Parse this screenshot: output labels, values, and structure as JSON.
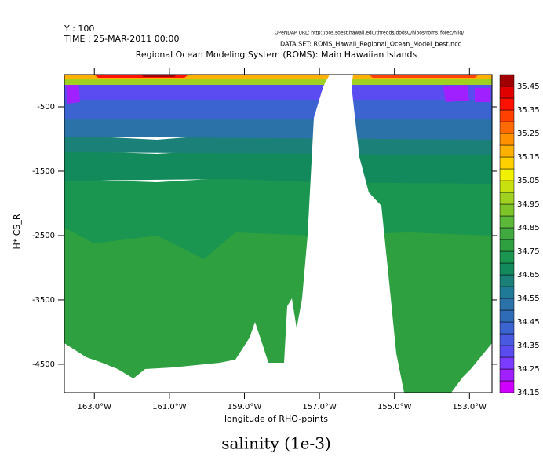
{
  "chart_data": {
    "type": "contour",
    "header": [
      "Y : 100",
      "TIME : 25-MAR-2011 00:00"
    ],
    "source_url": "OPeNDAP URL: http://oos.soest.hawaii.edu/thredds/dodsC/hioos/roms_forec/hiig/",
    "dataset": "DATA SET: ROMS_Hawaii_Regional_Ocean_Model_best.ncd",
    "title": "Regional Ocean Modeling System (ROMS): Main Hawaiian Islands",
    "x_label": "longitude of RHO-points",
    "y_label": "H* CS_R",
    "colorbar_label": "salinity (1e-3)",
    "xlim": [
      -163.8,
      -152.4
    ],
    "xticks": [
      {
        "value": -163,
        "label": "163.0°W"
      },
      {
        "value": -161,
        "label": "161.0°W"
      },
      {
        "value": -159,
        "label": "159.0°W"
      },
      {
        "value": -157,
        "label": "157.0°W"
      },
      {
        "value": -155,
        "label": "155.0°W"
      },
      {
        "value": -153,
        "label": "153.0°W"
      }
    ],
    "ylim": [
      -4940,
      0
    ],
    "yticks": [
      -500,
      -1500,
      -2500,
      -3500,
      -4500
    ],
    "colorbar_lim": [
      34.15,
      35.5
    ],
    "colorbar_ticks": [
      35.45,
      35.35,
      35.25,
      35.15,
      35.05,
      34.95,
      34.85,
      34.75,
      34.65,
      34.55,
      34.45,
      34.35,
      34.25,
      34.15
    ],
    "colorbar_colors": [
      "#d000ff",
      "#a020ff",
      "#7b3cff",
      "#5a4cf0",
      "#4a5ae0",
      "#3c64d0",
      "#2f6cb8",
      "#2a72a8",
      "#1f7a98",
      "#1a8078",
      "#138a5c",
      "#1a9650",
      "#2ea040",
      "#40aa40",
      "#5cb838",
      "#7cc428",
      "#a0d020",
      "#c8e010",
      "#f0f000",
      "#ffd000",
      "#ffb000",
      "#ff9000",
      "#ff6a00",
      "#ff4000",
      "#ff1000",
      "#e00000",
      "#a00000"
    ]
  }
}
